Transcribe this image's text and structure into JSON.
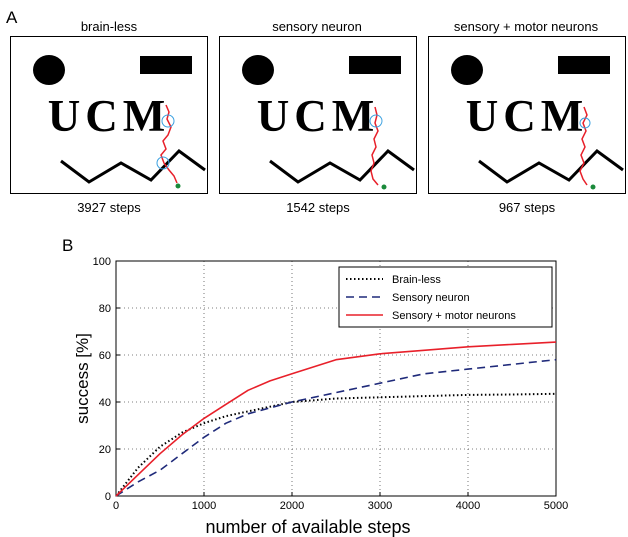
{
  "panel_a": {
    "letter": "A",
    "mazes": [
      {
        "title": "brain-less",
        "caption": "3927 steps",
        "ucm": "UCM"
      },
      {
        "title": "sensory neuron",
        "caption": "1542 steps",
        "ucm": "UCM"
      },
      {
        "title": "sensory + motor neurons",
        "caption": "967 steps",
        "ucm": "UCM"
      }
    ]
  },
  "panel_b": {
    "letter": "B"
  },
  "colors": {
    "brainless": "#000000",
    "sensory": "#1f2a7a",
    "motor": "#e8202a",
    "path": "#e8202a",
    "circle": "#3aa0e0",
    "start": "#1a8a3a"
  },
  "chart_data": {
    "type": "line",
    "xlabel": "number of available steps",
    "ylabel": "success [%]",
    "xlim": [
      0,
      5000
    ],
    "ylim": [
      0,
      100
    ],
    "xticks": [
      "0",
      "1000",
      "2000",
      "3000",
      "4000",
      "5000"
    ],
    "yticks": [
      "0",
      "20",
      "40",
      "60",
      "80",
      "100"
    ],
    "grid": true,
    "legend_position": "top-right",
    "series": [
      {
        "name": "Brain-less",
        "style": "dotted",
        "x": [
          0,
          250,
          500,
          750,
          1000,
          1250,
          1500,
          1750,
          2000,
          2500,
          3000,
          3500,
          4000,
          4500,
          5000
        ],
        "y": [
          0,
          12,
          21,
          27,
          31,
          34,
          36,
          38,
          40,
          41.5,
          42,
          42.5,
          43,
          43.2,
          43.5
        ]
      },
      {
        "name": "Sensory neuron",
        "style": "dashed",
        "x": [
          0,
          250,
          500,
          750,
          1000,
          1250,
          1500,
          1750,
          2000,
          2500,
          3000,
          3500,
          4000,
          4500,
          5000
        ],
        "y": [
          0,
          6,
          11,
          18,
          25,
          31,
          35,
          37.5,
          40,
          44,
          48,
          52,
          54,
          56,
          58
        ]
      },
      {
        "name": "Sensory + motor neurons",
        "style": "solid",
        "x": [
          0,
          250,
          500,
          750,
          1000,
          1250,
          1500,
          1750,
          2000,
          2500,
          3000,
          3500,
          4000,
          4500,
          5000
        ],
        "y": [
          0,
          9,
          18,
          26,
          33,
          39,
          45,
          49,
          52,
          58,
          60.5,
          62,
          63.5,
          64.5,
          65.5
        ]
      }
    ]
  }
}
